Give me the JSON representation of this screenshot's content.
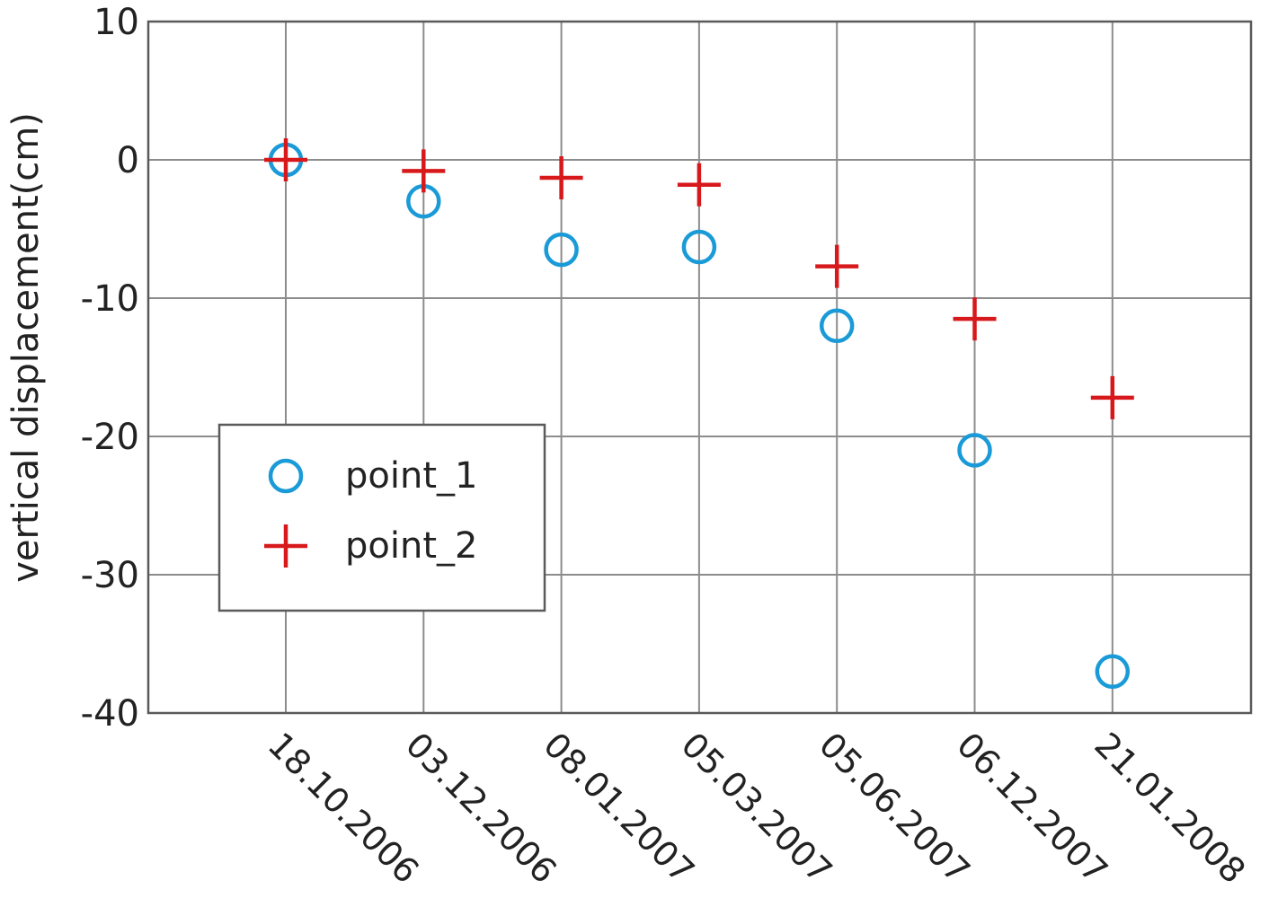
{
  "chart_data": {
    "type": "scatter",
    "title": "",
    "xlabel": "",
    "ylabel": "vertical displacement(cm)",
    "categories": [
      "18.10.2006",
      "03.12.2006",
      "08.01.2007",
      "05.03.2007",
      "05.06.2007",
      "06.12.2007",
      "21.01.2008"
    ],
    "ylim": [
      -40,
      10
    ],
    "yticks": [
      10,
      0,
      -10,
      -20,
      -30,
      -40
    ],
    "grid": true,
    "legend_position": "left",
    "series": [
      {
        "name": "point_1",
        "marker": "circle",
        "color": "#1a9bd7",
        "values": [
          0,
          -3,
          -6.5,
          -6.3,
          -12,
          -21,
          -37
        ]
      },
      {
        "name": "point_2",
        "marker": "plus",
        "color": "#d7191c",
        "values": [
          0,
          -0.8,
          -1.3,
          -1.8,
          -7.7,
          -11.5,
          -17.2
        ]
      }
    ]
  }
}
